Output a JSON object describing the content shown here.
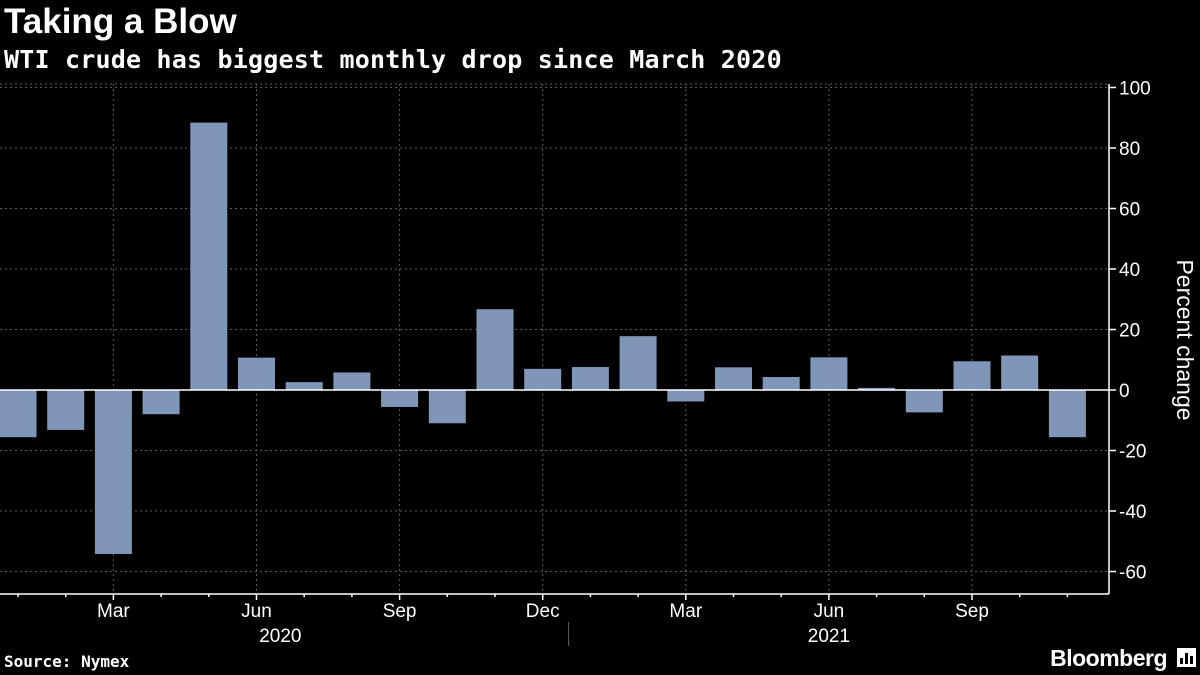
{
  "header": {
    "title": "Taking a Blow",
    "subtitle": "WTI crude has biggest monthly drop since March 2020"
  },
  "footer": {
    "source": "Source: Nymex",
    "brand": "Bloomberg",
    "brand_icon": "bloomberg-chart-icon"
  },
  "colors": {
    "background": "#000000",
    "bar": "#7f96b8",
    "grid": "#5c5c5c",
    "axis": "#ffffff",
    "text": "#ffffff"
  },
  "chart_data": {
    "type": "bar",
    "title": "Taking a Blow",
    "subtitle": "WTI crude has biggest monthly drop since March 2020",
    "ylabel": "Percent change",
    "xlabel": "",
    "ylim": [
      -67,
      104
    ],
    "yticks": [
      100,
      80,
      60,
      40,
      20,
      0,
      -20,
      -40,
      -60
    ],
    "ytick_labels": [
      "100",
      "80",
      "60",
      "40",
      "20",
      "0",
      "-20",
      "-40",
      "-60"
    ],
    "categories": [
      "Jan 2020",
      "Feb 2020",
      "Mar 2020",
      "Apr 2020",
      "May 2020",
      "Jun 2020",
      "Jul 2020",
      "Aug 2020",
      "Sep 2020",
      "Oct 2020",
      "Nov 2020",
      "Dec 2020",
      "Jan 2021",
      "Feb 2021",
      "Mar 2021",
      "Apr 2021",
      "May 2021",
      "Jun 2021",
      "Jul 2021",
      "Aug 2021",
      "Sep 2021",
      "Oct 2021",
      "Nov 2021"
    ],
    "values": [
      -15.6,
      -13.2,
      -54.2,
      -8.0,
      88.4,
      10.7,
      2.6,
      5.8,
      -5.6,
      -11.0,
      26.7,
      7.0,
      7.6,
      17.8,
      -3.8,
      7.5,
      4.3,
      10.8,
      0.7,
      -7.4,
      9.5,
      11.4,
      -15.6
    ],
    "xtick_labels": [
      {
        "label": "Mar",
        "index": 2
      },
      {
        "label": "Jun",
        "index": 5
      },
      {
        "label": "Sep",
        "index": 8
      },
      {
        "label": "Dec",
        "index": 11
      },
      {
        "label": "Mar",
        "index": 14
      },
      {
        "label": "Jun",
        "index": 17
      },
      {
        "label": "Sep",
        "index": 20
      }
    ],
    "year_labels": [
      {
        "label": "2020",
        "start": 0,
        "end": 11
      },
      {
        "label": "2021",
        "start": 12,
        "end": 22
      }
    ],
    "grid": true,
    "legend": "none"
  }
}
